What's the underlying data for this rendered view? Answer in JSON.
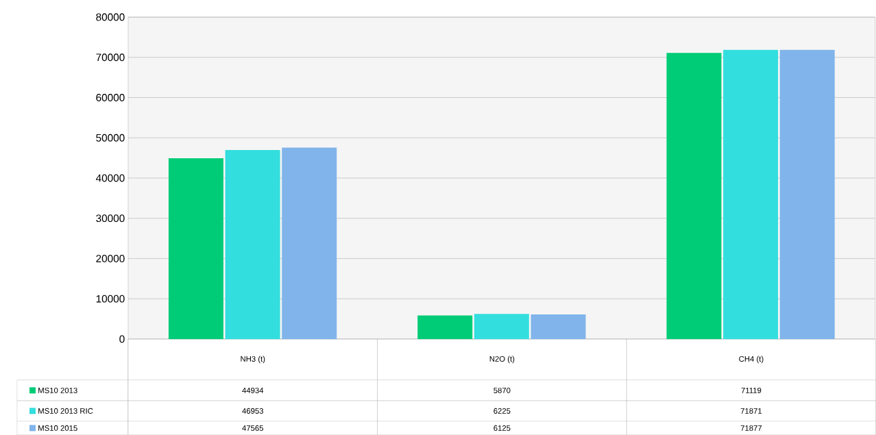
{
  "chart_data": {
    "type": "bar",
    "categories": [
      "NH3  (t)",
      "N2O  (t)",
      "CH4  (t)"
    ],
    "series": [
      {
        "name": "MS10 2013",
        "color": "#00cc77",
        "values": [
          44934,
          5870,
          71119
        ]
      },
      {
        "name": "MS10 2013 RIC",
        "color": "#33dede",
        "values": [
          46953,
          6225,
          71871
        ]
      },
      {
        "name": "MS10 2015",
        "color": "#80b4ea",
        "values": [
          47565,
          6125,
          71877
        ]
      }
    ],
    "ylim": [
      0,
      80000
    ],
    "yticks": [
      0,
      10000,
      20000,
      30000,
      40000,
      50000,
      60000,
      70000,
      80000
    ],
    "grid": "y",
    "legend": "bottom left",
    "data_labels": true
  }
}
